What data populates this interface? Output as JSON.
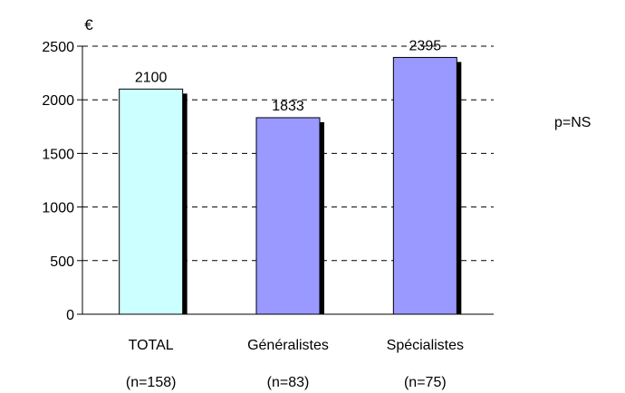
{
  "chart_data": {
    "type": "bar",
    "ylabel": "€",
    "annotation": "p=NS",
    "ylim": [
      0,
      2500
    ],
    "yticks": [
      0,
      500,
      1000,
      1500,
      2000,
      2500
    ],
    "categories": [
      "TOTAL",
      "Généralistes",
      "Spécialistes"
    ],
    "sample_sizes": [
      "(n=158)",
      "(n=83)",
      "(n=75)"
    ],
    "values": [
      2100,
      1833,
      2395
    ],
    "data_labels": [
      "2100",
      "1833",
      "2395"
    ],
    "bar_colors": [
      "#ccffff",
      "#9999ff",
      "#9999ff"
    ],
    "shadow_color": "#000000",
    "grid": true
  }
}
